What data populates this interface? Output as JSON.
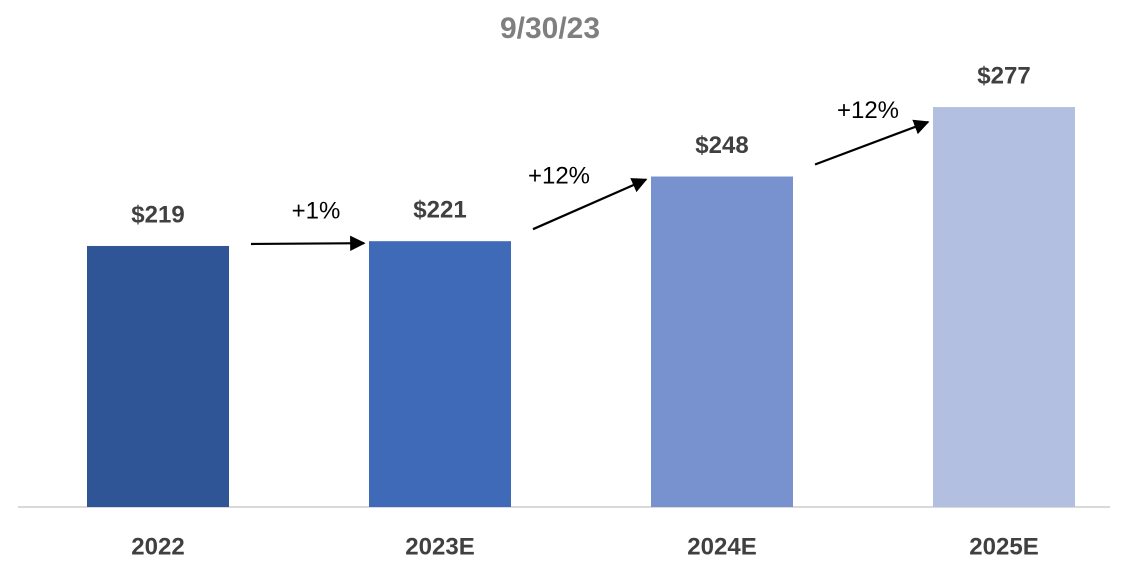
{
  "chart_data": {
    "type": "bar",
    "title": "9/30/23",
    "categories": [
      "2022",
      "2023E",
      "2024E",
      "2025E"
    ],
    "values": [
      219,
      221,
      248,
      277
    ],
    "value_labels": [
      "$219",
      "$221",
      "$248",
      "$277"
    ],
    "colors": [
      "#2f5597",
      "#3e6ab8",
      "#7891cf",
      "#b3bfe0"
    ],
    "annotations": [
      "+1%",
      "+12%",
      "+12%"
    ],
    "ylim": [
      110,
      300
    ]
  }
}
